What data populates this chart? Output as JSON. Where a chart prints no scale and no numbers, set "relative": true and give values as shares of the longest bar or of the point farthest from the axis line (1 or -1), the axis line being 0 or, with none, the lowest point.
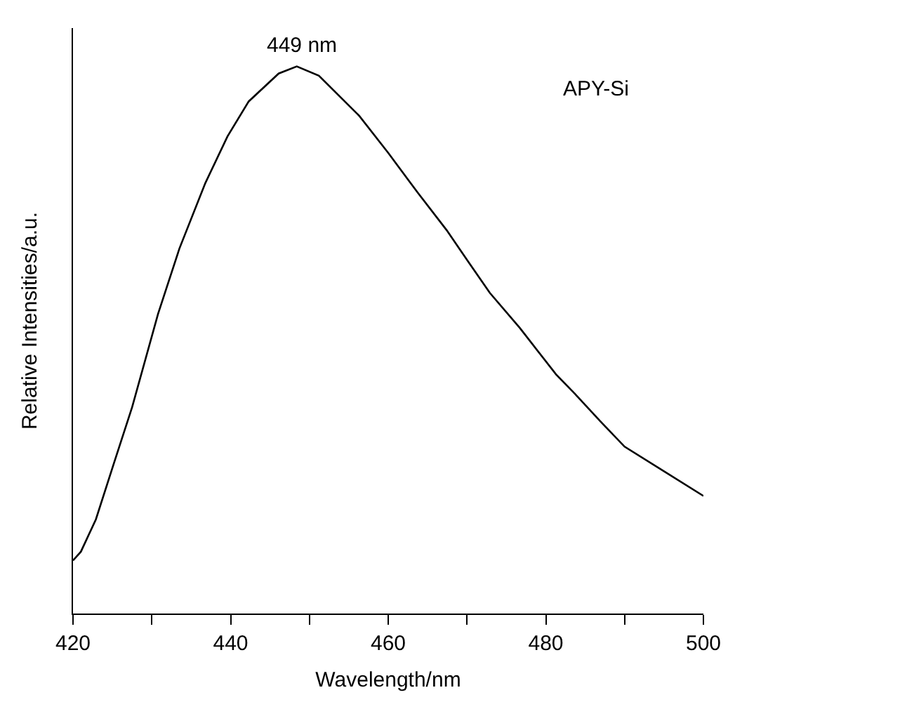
{
  "chart_data": {
    "type": "line",
    "relative": true,
    "xlabel": "Wavelength/nm",
    "ylabel": "Relative Intensities/a.u.",
    "xlim": [
      420,
      500
    ],
    "xticks": [
      420,
      {
        "value": 430,
        "label": null
      },
      440,
      {
        "value": 450,
        "label": null
      },
      460,
      {
        "value": 470,
        "label": null
      },
      480,
      {
        "value": 490,
        "label": null
      },
      500
    ],
    "annotations": [
      {
        "text": "449 nm",
        "x": 449,
        "y": 1
      }
    ],
    "grid": false,
    "legend": false,
    "marker": "none",
    "line_style": "solid",
    "series": [
      {
        "name": "APY-Si",
        "color": "#000000",
        "x": [
          420,
          421,
          422.9,
          425.2,
          427.5,
          430.8,
          433.5,
          436.8,
          439.6,
          442.3,
          446.1,
          448.4,
          451.2,
          456.3,
          460,
          463.7,
          467.4,
          470.2,
          472.9,
          476.7,
          481.3,
          483.6,
          487,
          490,
          495,
          500
        ],
        "values": [
          0.097,
          0.113,
          0.172,
          0.275,
          0.377,
          0.548,
          0.667,
          0.787,
          0.872,
          0.936,
          0.987,
          1.0,
          0.983,
          0.91,
          0.842,
          0.77,
          0.701,
          0.642,
          0.586,
          0.522,
          0.437,
          0.403,
          0.35,
          0.305,
          0.26,
          0.215
        ]
      }
    ]
  }
}
